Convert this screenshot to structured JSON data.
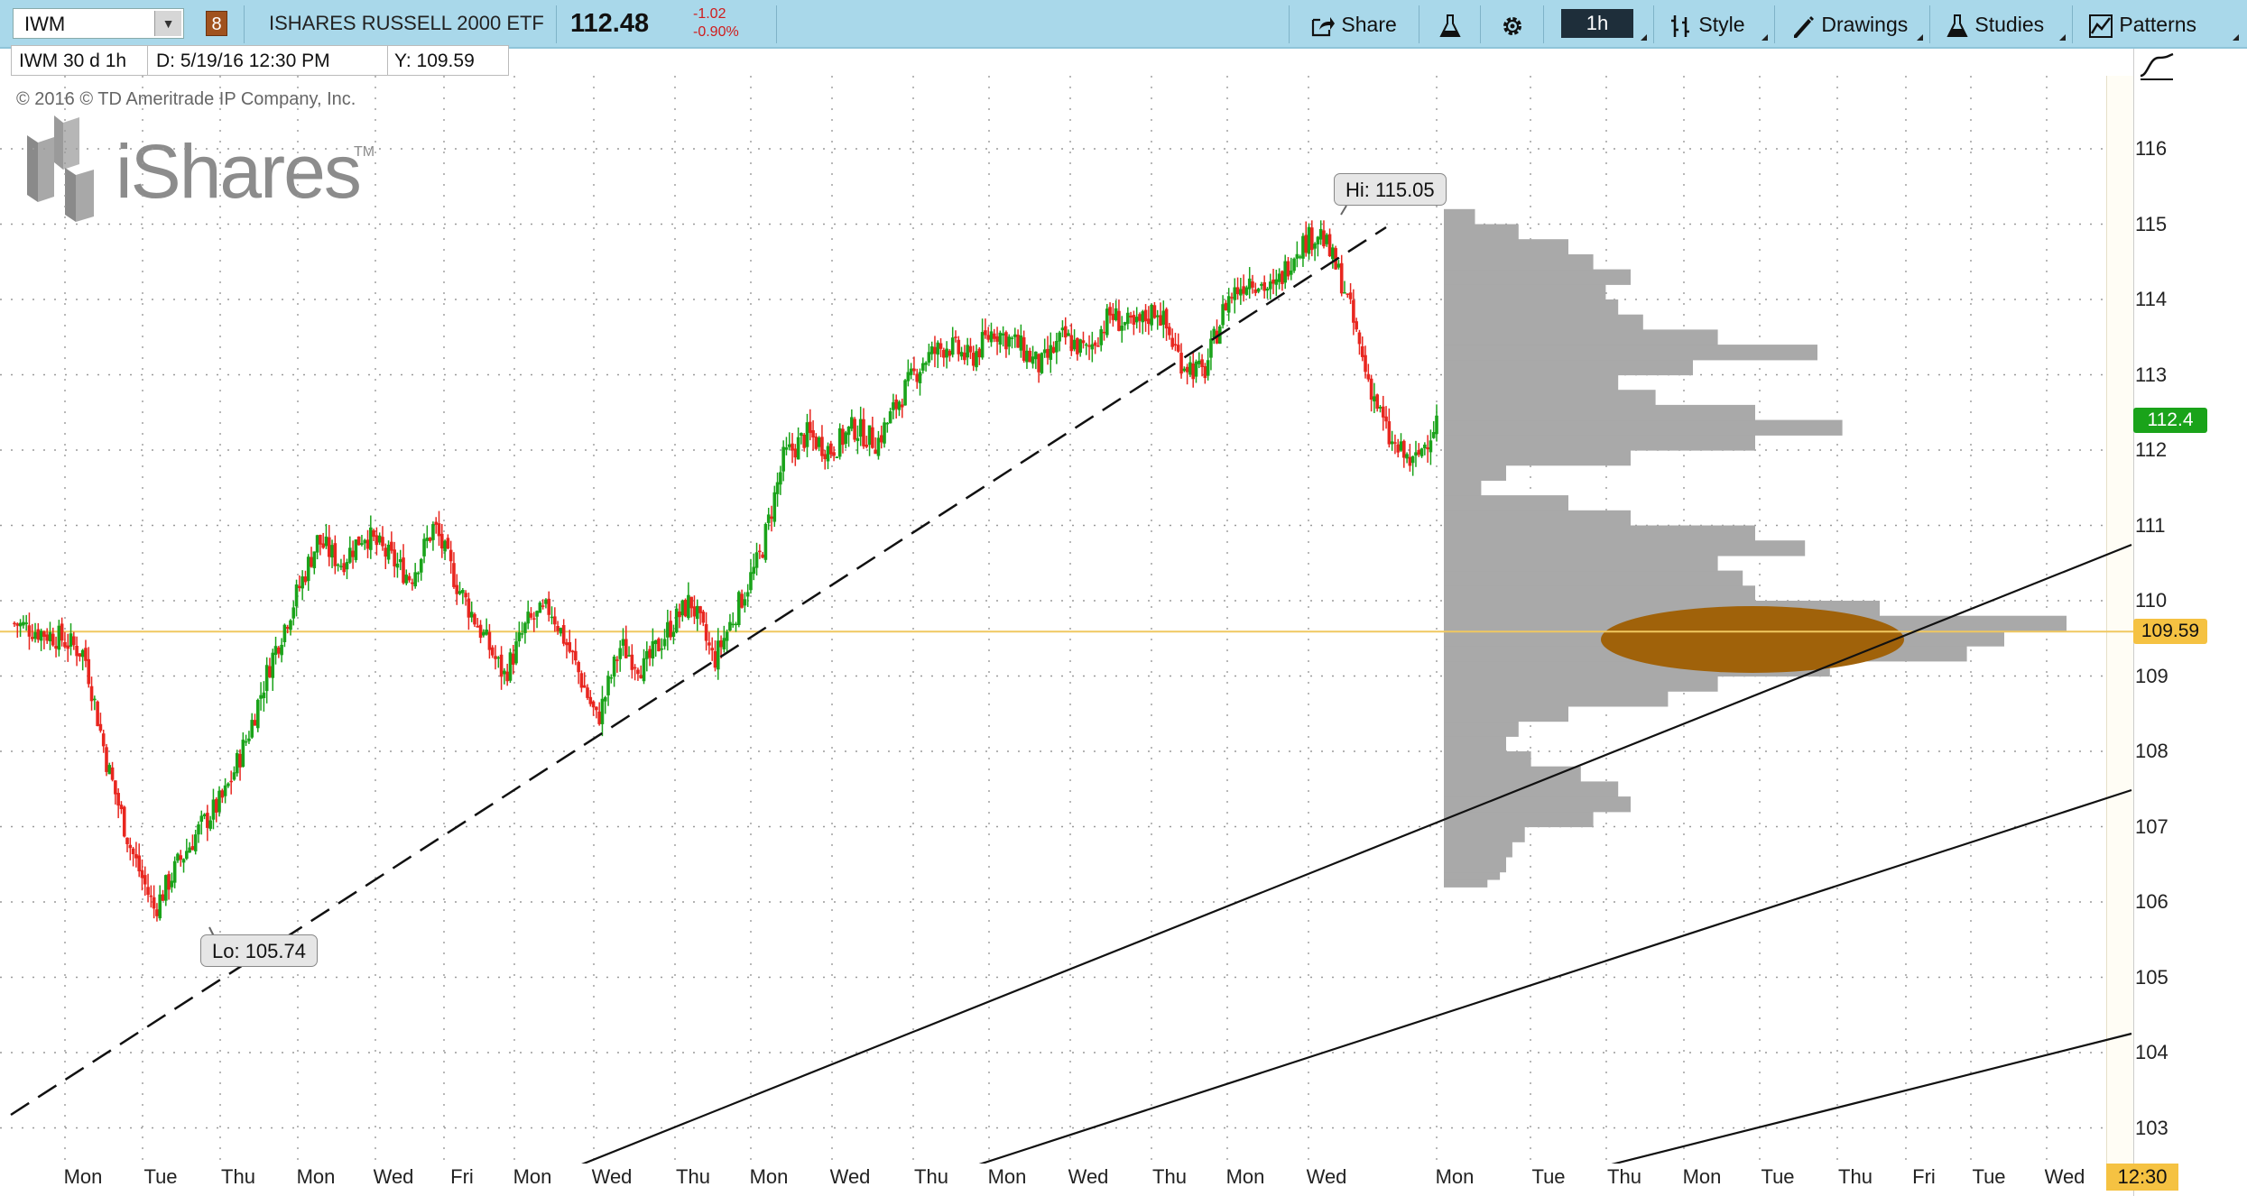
{
  "toolbar": {
    "symbol": "IWM",
    "group_number": "8",
    "description": "ISHARES RUSSELL 2000 ETF",
    "last_price": "112.48",
    "change": "-1.02",
    "change_percent": "-0.90%",
    "share_label": "Share",
    "interval_label": "1h",
    "style_label": "Style",
    "drawings_label": "Drawings",
    "studies_label": "Studies",
    "patterns_label": "Patterns",
    "icons": [
      "share-icon",
      "flask-icon",
      "gear-icon",
      "style-icon",
      "drawings-icon",
      "studies-icon",
      "patterns-icon"
    ]
  },
  "infobar": {
    "aggregation": "IWM 30 d 1h",
    "date_readout": "D:  5/19/16 12:30 PM",
    "y_readout": "Y:  109.59"
  },
  "watermark": {
    "copyright": "© 2016 © TD Ameritrade IP Company, Inc.",
    "logo_text": "iShares",
    "logo_tm": "TM"
  },
  "price_tags": {
    "last": "112.4",
    "cursor": "109.59",
    "time": "12:30"
  },
  "colors": {
    "up": "#1aa31a",
    "down": "#e8261f",
    "volume_profile": "#a9a9a9",
    "poc_ellipse": "#a0620a",
    "last_tag": "#1aa31a",
    "cursor_tag": "#f5c242",
    "toolbar": "#a9d8ea"
  },
  "chart_data": {
    "type": "candlestick",
    "ylim": [
      102.6,
      116.6
    ],
    "yticks": [
      "103",
      "104",
      "105",
      "106",
      "107",
      "108",
      "109",
      "110",
      "111",
      "112",
      "113",
      "114",
      "115",
      "116"
    ],
    "x_session_labels": [
      "Mon",
      "Tue",
      "Thu",
      "Mon",
      "Wed",
      "Fri",
      "Mon",
      "Wed",
      "Thu",
      "Mon",
      "Wed",
      "Thu",
      "Mon",
      "Wed",
      "Thu",
      "Mon",
      "Wed",
      "Mon",
      "Tue",
      "Thu",
      "Mon",
      "Tue",
      "Thu",
      "Fri",
      "Tue",
      "Wed"
    ],
    "high_label": "Hi: 115.05",
    "low_label": "Lo: 105.74",
    "high": 115.05,
    "low": 105.74,
    "last": 112.4,
    "cursor_y": 109.59,
    "grid": true,
    "price_path": [
      109.7,
      109.6,
      109.5,
      109.3,
      107.8,
      106.7,
      105.9,
      106.5,
      107.0,
      107.4,
      108.2,
      109.2,
      110.0,
      110.8,
      110.5,
      110.9,
      110.6,
      110.3,
      111.0,
      110.2,
      109.6,
      109.0,
      109.7,
      109.9,
      109.2,
      108.4,
      109.4,
      109.1,
      109.6,
      110.0,
      109.2,
      109.9,
      110.6,
      111.9,
      112.2,
      112.0,
      112.3,
      112.1,
      112.7,
      113.2,
      113.4,
      113.2,
      113.6,
      113.4,
      113.1,
      113.5,
      113.3,
      113.8,
      113.6,
      113.9,
      113.2,
      113.0,
      114.0,
      114.3,
      114.1,
      114.7,
      114.9,
      114.2,
      113.0,
      112.1,
      111.8,
      112.4
    ],
    "volume_profile": {
      "price_step": 0.1,
      "bars": [
        [
          106.2,
          0.07
        ],
        [
          106.3,
          0.09
        ],
        [
          106.4,
          0.1
        ],
        [
          106.6,
          0.11
        ],
        [
          106.8,
          0.13
        ],
        [
          107.0,
          0.24
        ],
        [
          107.2,
          0.3
        ],
        [
          107.4,
          0.28
        ],
        [
          107.6,
          0.22
        ],
        [
          107.8,
          0.14
        ],
        [
          108.0,
          0.1
        ],
        [
          108.2,
          0.12
        ],
        [
          108.4,
          0.2
        ],
        [
          108.6,
          0.36
        ],
        [
          108.8,
          0.44
        ],
        [
          109.0,
          0.62
        ],
        [
          109.2,
          0.84
        ],
        [
          109.4,
          0.9
        ],
        [
          109.6,
          1.0
        ],
        [
          109.8,
          0.7
        ],
        [
          110.0,
          0.5
        ],
        [
          110.2,
          0.48
        ],
        [
          110.4,
          0.44
        ],
        [
          110.6,
          0.58
        ],
        [
          110.8,
          0.5
        ],
        [
          111.0,
          0.3
        ],
        [
          111.2,
          0.2
        ],
        [
          111.4,
          0.06
        ],
        [
          111.6,
          0.1
        ],
        [
          111.8,
          0.3
        ],
        [
          112.0,
          0.5
        ],
        [
          112.2,
          0.64
        ],
        [
          112.4,
          0.5
        ],
        [
          112.6,
          0.34
        ],
        [
          112.8,
          0.28
        ],
        [
          113.0,
          0.4
        ],
        [
          113.2,
          0.6
        ],
        [
          113.4,
          0.44
        ],
        [
          113.6,
          0.32
        ],
        [
          113.8,
          0.28
        ],
        [
          114.0,
          0.26
        ],
        [
          114.2,
          0.3
        ],
        [
          114.4,
          0.24
        ],
        [
          114.6,
          0.2
        ],
        [
          114.8,
          0.12
        ],
        [
          115.0,
          0.05
        ]
      ]
    }
  }
}
